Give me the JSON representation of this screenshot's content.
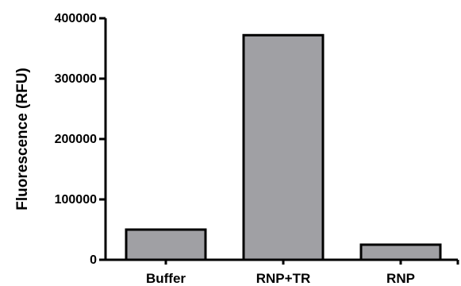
{
  "chart_data": {
    "type": "bar",
    "title": "",
    "xlabel": "",
    "ylabel": "Fluorescence (RFU)",
    "categories": [
      "Buffer",
      "RNP+TR",
      "RNP"
    ],
    "values": [
      50000,
      372000,
      25000
    ],
    "ylim": [
      0,
      400000
    ],
    "yticks": [
      0,
      100000,
      200000,
      300000,
      400000
    ],
    "ytick_labels": [
      "0",
      "100000",
      "200000",
      "300000",
      "400000"
    ],
    "grid": false,
    "legend": "none",
    "bar_color": "#a0a0a4",
    "bar_edge_color": "#000000"
  }
}
